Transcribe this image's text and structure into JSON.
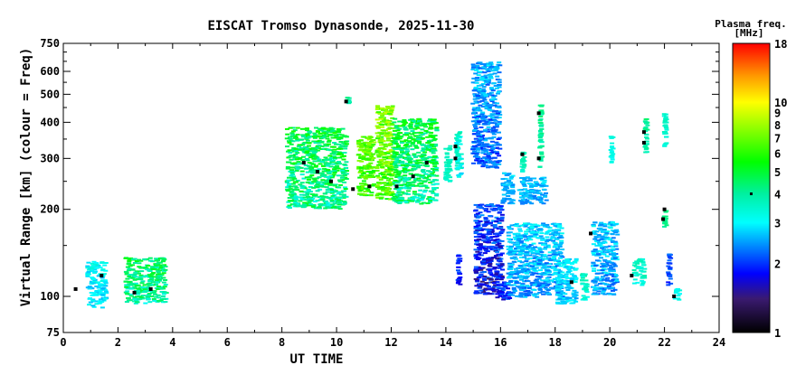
{
  "chart_data": {
    "type": "scatter",
    "title": "EISCAT Tromso Dynasonde, 2025-11-30",
    "xlabel": "UT TIME",
    "ylabel": "Virtual Range [km] (colour = Freq)",
    "xlim": [
      0,
      24
    ],
    "ylim": [
      75,
      750
    ],
    "y_scale": "log",
    "x_ticks": [
      "0",
      "2",
      "4",
      "6",
      "8",
      "10",
      "12",
      "14",
      "16",
      "18",
      "20",
      "22",
      "24"
    ],
    "y_ticks": [
      "75",
      "100",
      "200",
      "300",
      "400",
      "500",
      "600",
      "750"
    ],
    "grid": false,
    "colorbar": {
      "title_line1": "Plasma freq.",
      "title_line2": "[MHz]",
      "range": [
        1,
        18
      ],
      "scale": "log",
      "ticks": [
        "1",
        "2",
        "3",
        "4",
        "5",
        "6",
        "7",
        "8",
        "9",
        "10",
        "18"
      ],
      "colors": [
        "#000000",
        "#3a1a70",
        "#0000ff",
        "#00ffff",
        "#00f0a0",
        "#00ff00",
        "#ffff00",
        "#ff9900",
        "#ff0000"
      ],
      "legend_placement": "right"
    },
    "traces": [
      {
        "t": [
          0.8,
          1.5
        ],
        "range_km": [
          92,
          133
        ],
        "freq_MHz": [
          2.4,
          3.5
        ]
      },
      {
        "t": [
          2.2,
          3.7
        ],
        "range_km": [
          95,
          137
        ],
        "freq_MHz": [
          3.0,
          5.5
        ]
      },
      {
        "t": [
          8.1,
          10.3
        ],
        "range_km": [
          202,
          386
        ],
        "freq_MHz": [
          3.0,
          6.0
        ]
      },
      {
        "t": [
          10.3,
          10.4
        ],
        "range_km": [
          460,
          498
        ],
        "freq_MHz": [
          3.5,
          4.5
        ]
      },
      {
        "t": [
          10.7,
          11.3
        ],
        "range_km": [
          225,
          360
        ],
        "freq_MHz": [
          5.0,
          8.0
        ]
      },
      {
        "t": [
          11.4,
          12.0
        ],
        "range_km": [
          217,
          460
        ],
        "freq_MHz": [
          5.0,
          9.0
        ]
      },
      {
        "t": [
          12.0,
          13.6
        ],
        "range_km": [
          210,
          415
        ],
        "freq_MHz": [
          3.0,
          6.0
        ]
      },
      {
        "t": [
          13.9,
          14.1
        ],
        "range_km": [
          251,
          335
        ],
        "freq_MHz": [
          3.3,
          4.0
        ]
      },
      {
        "t": [
          14.3,
          14.5
        ],
        "range_km": [
          251,
          373
        ],
        "freq_MHz": [
          2.5,
          4.0
        ]
      },
      {
        "t": [
          14.35,
          14.45
        ],
        "range_km": [
          110,
          141
        ],
        "freq_MHz": [
          1.6,
          2.2
        ]
      },
      {
        "t": [
          14.9,
          15.9
        ],
        "range_km": [
          280,
          650
        ],
        "freq_MHz": [
          1.8,
          3.0
        ]
      },
      {
        "t": [
          15.0,
          16.0
        ],
        "range_km": [
          102,
          210
        ],
        "freq_MHz": [
          1.3,
          2.5
        ]
      },
      {
        "t": [
          15.8,
          16.3
        ],
        "range_km": [
          98,
          113
        ],
        "freq_MHz": [
          1.5,
          2.5
        ]
      },
      {
        "t": [
          16.0,
          16.4
        ],
        "range_km": [
          210,
          270
        ],
        "freq_MHz": [
          2.2,
          3.0
        ]
      },
      {
        "t": [
          16.6,
          17.6
        ],
        "range_km": [
          210,
          260
        ],
        "freq_MHz": [
          2.2,
          3.0
        ]
      },
      {
        "t": [
          16.7,
          16.8
        ],
        "range_km": [
          270,
          330
        ],
        "freq_MHz": [
          3.3,
          4.0
        ]
      },
      {
        "t": [
          17.35,
          17.45
        ],
        "range_km": [
          280,
          463
        ],
        "freq_MHz": [
          3.5,
          4.5
        ]
      },
      {
        "t": [
          16.2,
          18.2
        ],
        "range_km": [
          100,
          180
        ],
        "freq_MHz": [
          2.0,
          3.2
        ]
      },
      {
        "t": [
          18.0,
          18.7
        ],
        "range_km": [
          95,
          136
        ],
        "freq_MHz": [
          2.4,
          3.2
        ]
      },
      {
        "t": [
          18.9,
          19.1
        ],
        "range_km": [
          98,
          122
        ],
        "freq_MHz": [
          3.0,
          4.0
        ]
      },
      {
        "t": [
          19.3,
          20.2
        ],
        "range_km": [
          102,
          182
        ],
        "freq_MHz": [
          2.0,
          3.2
        ]
      },
      {
        "t": [
          19.95,
          20.05
        ],
        "range_km": [
          290,
          360
        ],
        "freq_MHz": [
          3.0,
          3.4
        ]
      },
      {
        "t": [
          20.8,
          21.2
        ],
        "range_km": [
          110,
          136
        ],
        "freq_MHz": [
          3.0,
          4.0
        ]
      },
      {
        "t": [
          21.2,
          21.3
        ],
        "range_km": [
          312,
          416
        ],
        "freq_MHz": [
          3.5,
          4.5
        ]
      },
      {
        "t": [
          21.9,
          22.0
        ],
        "range_km": [
          323,
          431
        ],
        "freq_MHz": [
          3.2,
          3.8
        ]
      },
      {
        "t": [
          21.9,
          22.0
        ],
        "range_km": [
          175,
          202
        ],
        "freq_MHz": [
          3.8,
          4.5
        ]
      },
      {
        "t": [
          22.05,
          22.15
        ],
        "range_km": [
          110,
          141
        ],
        "freq_MHz": [
          1.8,
          2.4
        ]
      },
      {
        "t": [
          22.3,
          22.5
        ],
        "range_km": [
          97,
          107
        ],
        "freq_MHz": [
          2.8,
          3.5
        ]
      }
    ],
    "markers": [
      [
        0.45,
        106
      ],
      [
        1.4,
        118
      ],
      [
        2.6,
        103
      ],
      [
        3.2,
        106
      ],
      [
        8.8,
        290
      ],
      [
        9.3,
        270
      ],
      [
        9.8,
        250
      ],
      [
        10.35,
        472
      ],
      [
        10.6,
        235
      ],
      [
        11.2,
        240
      ],
      [
        12.2,
        240
      ],
      [
        12.8,
        260
      ],
      [
        13.3,
        290
      ],
      [
        14.35,
        330
      ],
      [
        14.35,
        300
      ],
      [
        16.8,
        310
      ],
      [
        17.4,
        300
      ],
      [
        17.4,
        430
      ],
      [
        19.3,
        165
      ],
      [
        21.25,
        340
      ],
      [
        21.25,
        370
      ],
      [
        21.95,
        185
      ],
      [
        22.35,
        100
      ],
      [
        20.8,
        118
      ],
      [
        18.6,
        112
      ],
      [
        22.0,
        200
      ]
    ]
  }
}
